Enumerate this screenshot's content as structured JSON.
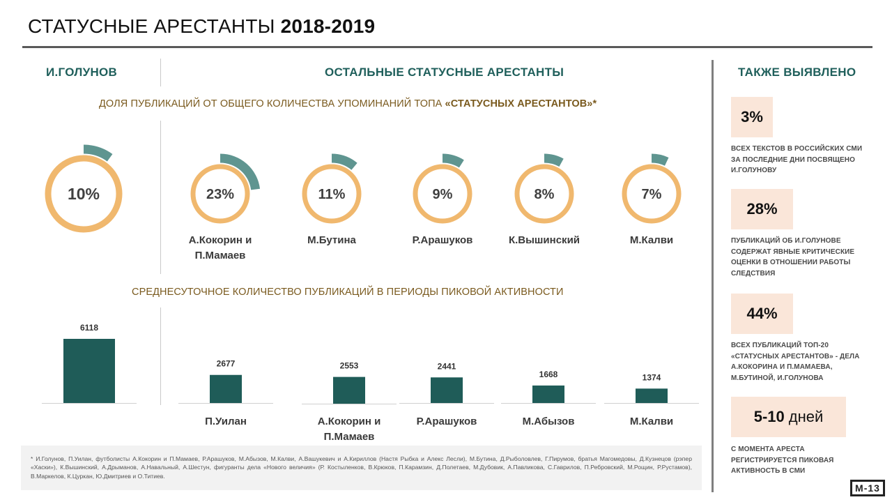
{
  "page": {
    "title_regular": "СТАТУСНЫЕ АРЕСТАНТЫ",
    "title_bold": "2018-2019",
    "headers": {
      "left": "И.ГОЛУНОВ",
      "middle": "ОСТАЛЬНЫЕ СТАТУСНЫЕ АРЕСТАНТЫ",
      "right": "ТАКЖЕ ВЫЯВЛЕНО"
    },
    "subtitle_share": {
      "before": "ДОЛЯ ПУБЛИКАЦИЙ ОТ ОБЩЕГО КОЛИЧЕСТВА УПОМИНАНИЙ ТОПА ",
      "quoted": "«СТАТУСНЫХ АРЕСТАНТОВ»*"
    },
    "subtitle_daily": "СРЕДНЕСУТОЧНОЕ КОЛИЧЕСТВО ПУБЛИКАЦИЙ В ПЕРИОДЫ ПИКОВОЙ АКТИВНОСТИ",
    "footnote": "* И.Голунов, П.Уилан, футболисты А.Кокорин и П.Мамаев, Р.Арашуков, М.Абызов, М.Калви, А.Вашукевич и А.Кириллов (Настя Рыбка и Алекс Лесли), М.Бутина, Д.Рыболовлев, Г.Пирумов, братья Магомедовы, Д.Кузнецов (рэпер «Хаски»), К.Вышинский, А.Дрыманов, А.Навальный, А.Шестун, фигуранты дела «Нового величия» (Р. Костыленков, В.Крюков, П.Карамзин, Д.Полетаев, М.Дубовик, А.Павликова, С.Гаврилов, П.Ребровский, М.Рощин, Р.Рустамов), В.Маркелов, К.Цуркан, Ю.Дмитриев и О.Титиев.",
    "also_found": [
      {
        "value": "3%",
        "unit": "",
        "text": "ВСЕХ ТЕКСТОВ В РОССИЙСКИХ СМИ  ЗА ПОСЛЕДНИЕ  ДНИ ПОСВЯЩЕНО И.ГОЛУНОВУ"
      },
      {
        "value": "28%",
        "unit": "",
        "text": "ПУБЛИКАЦИЙ ОБ И.ГОЛУНОВЕ СОДЕРЖАТ ЯВНЫЕ КРИТИЧЕСКИЕ ОЦЕНКИ В ОТНОШЕНИИ РАБОТЫ СЛЕДСТВИЯ"
      },
      {
        "value": "44%",
        "unit": "",
        "text": "ВСЕХ ПУБЛИКАЦИЙ ТОП-20 «СТАТУСНЫХ АРЕСТАНТОВ» - ДЕЛА А.КОКОРИНА И П.МАМАЕВА, М.БУТИНОЙ, И.ГОЛУНОВА"
      },
      {
        "value": "5-10",
        "unit": "дней",
        "text": "С МОМЕНТА АРЕСТА РЕГИСТРИРУЕТСЯ ПИКОВАЯ АКТИВНОСТЬ В СМИ"
      }
    ],
    "logo": "M-13",
    "colors": {
      "ring": "#f0b86e",
      "wedge": "#5f9590",
      "bar": "#1f5c58",
      "header": "#1f5f5b",
      "subtitle": "#7a5a1e",
      "badge": "#fae6d9"
    }
  },
  "chart_data": [
    {
      "type": "pie",
      "title": "ДОЛЯ ПУБЛИКАЦИЙ ОТ ОБЩЕГО КОЛИЧЕСТВА УПОМИНАНИЙ ТОПА «СТАТУСНЫХ АРЕСТАНТОВ»*",
      "unit": "%",
      "items": [
        {
          "label": "И.Голунов",
          "value": 10,
          "display": "10%",
          "name_lines": []
        },
        {
          "label": "А.Кокорин и П.Мамаев",
          "value": 23,
          "display": "23%",
          "name_lines": [
            "А.Кокорин и",
            "П.Мамаев"
          ]
        },
        {
          "label": "М.Бутина",
          "value": 11,
          "display": "11%",
          "name_lines": [
            "М.Бутина"
          ]
        },
        {
          "label": "Р.Арашуков",
          "value": 9,
          "display": "9%",
          "name_lines": [
            "Р.Арашуков"
          ]
        },
        {
          "label": "К.Вышинский",
          "value": 8,
          "display": "8%",
          "name_lines": [
            "К.Вышинский"
          ]
        },
        {
          "label": "М.Калви",
          "value": 7,
          "display": "7%",
          "name_lines": [
            "М.Калви"
          ]
        }
      ]
    },
    {
      "type": "bar",
      "title": "СРЕДНЕСУТОЧНОЕ КОЛИЧЕСТВО ПУБЛИКАЦИЙ В ПЕРИОДЫ ПИКОВОЙ АКТИВНОСТИ",
      "categories": [
        "И.Голунов",
        "П.Уилан",
        "А.Кокорин и П.Мамаев",
        "Р.Арашуков",
        "М.Абызов",
        "М.Калви"
      ],
      "name_lines": [
        [],
        [
          "П.Уилан"
        ],
        [
          "А.Кокорин и",
          "П.Мамаев"
        ],
        [
          "Р.Арашуков"
        ],
        [
          "М.Абызов"
        ],
        [
          "М.Калви"
        ]
      ],
      "values": [
        6118,
        2677,
        2553,
        2441,
        1668,
        1374
      ],
      "ylim": [
        0,
        6118
      ]
    }
  ]
}
